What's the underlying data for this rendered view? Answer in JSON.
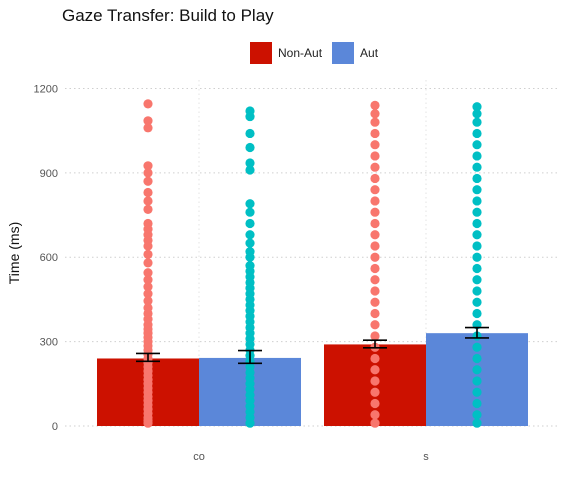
{
  "chart_data": {
    "type": "bar",
    "title": "Gaze Transfer: Build to Play",
    "xlabel": "",
    "ylabel": "Time (ms)",
    "ylim": [
      0,
      1230
    ],
    "yticks": [
      0,
      300,
      600,
      900,
      1200
    ],
    "categories": [
      "co",
      "s"
    ],
    "grid": "horizontal dotted",
    "legend_position": "top",
    "series": [
      {
        "name": "Non-Aut",
        "color": "#cc1100",
        "point_color": "#f8766d",
        "values": [
          240,
          290
        ],
        "error": [
          [
            230,
            258
          ],
          [
            278,
            305
          ]
        ],
        "points": [
          [
            10,
            20,
            30,
            45,
            60,
            75,
            90,
            105,
            120,
            135,
            150,
            165,
            180,
            195,
            210,
            225,
            240,
            255,
            270,
            285,
            300,
            315,
            330,
            345,
            360,
            380,
            400,
            420,
            445,
            470,
            495,
            520,
            545,
            580,
            610,
            640,
            660,
            680,
            700,
            720,
            770,
            800,
            830,
            870,
            900,
            925,
            1060,
            1085,
            1145
          ],
          [
            10,
            40,
            80,
            120,
            160,
            200,
            240,
            280,
            320,
            360,
            400,
            440,
            480,
            520,
            560,
            600,
            640,
            680,
            720,
            760,
            800,
            840,
            880,
            920,
            960,
            1000,
            1040,
            1080,
            1110,
            1140
          ]
        ]
      },
      {
        "name": "Aut",
        "color": "#5b87d9",
        "point_color": "#00bfc4",
        "values": [
          242,
          330
        ],
        "error": [
          [
            223,
            268
          ],
          [
            313,
            350
          ]
        ],
        "points": [
          [
            10,
            30,
            50,
            70,
            90,
            110,
            130,
            150,
            170,
            190,
            210,
            230,
            250,
            270,
            290,
            310,
            330,
            350,
            370,
            390,
            410,
            430,
            450,
            470,
            490,
            510,
            530,
            550,
            570,
            600,
            620,
            650,
            680,
            720,
            760,
            790,
            910,
            935,
            990,
            1040,
            1100,
            1120
          ],
          [
            10,
            40,
            80,
            120,
            160,
            200,
            240,
            280,
            320,
            360,
            400,
            440,
            480,
            520,
            560,
            600,
            640,
            680,
            720,
            760,
            800,
            840,
            880,
            920,
            960,
            1000,
            1040,
            1080,
            1110,
            1135
          ]
        ]
      }
    ]
  }
}
